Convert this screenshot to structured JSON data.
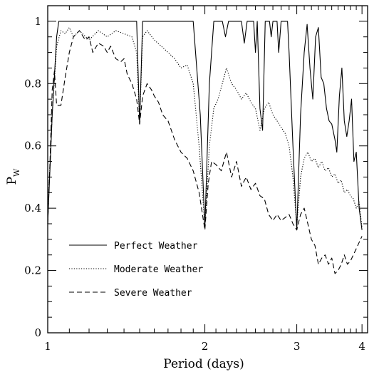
{
  "chart_data": {
    "type": "line",
    "title": "",
    "xlabel": "Period (days)",
    "ylabel_main": "P",
    "ylabel_sub": "W",
    "xscale": "log",
    "xlim": [
      1,
      4.1
    ],
    "ylim": [
      0,
      1.05
    ],
    "grid": false,
    "legend_position": "bottom-left",
    "x_ticks": [
      {
        "value": 1,
        "label": "1"
      },
      {
        "value": 2,
        "label": "2"
      },
      {
        "value": 3,
        "label": "3"
      },
      {
        "value": 4,
        "label": "4"
      }
    ],
    "y_ticks": [
      {
        "value": 0,
        "label": "0"
      },
      {
        "value": 0.2,
        "label": "0.2"
      },
      {
        "value": 0.4,
        "label": "0.4"
      },
      {
        "value": 0.6,
        "label": "0.6"
      },
      {
        "value": 0.8,
        "label": "0.8"
      },
      {
        "value": 1,
        "label": "1"
      }
    ],
    "series": [
      {
        "name": "Perfect Weather",
        "style": "solid",
        "color": "#000000",
        "points": [
          [
            1.0,
            0.35
          ],
          [
            1.02,
            0.7
          ],
          [
            1.04,
            0.95
          ],
          [
            1.05,
            1.0
          ],
          [
            1.2,
            1.0
          ],
          [
            1.4,
            1.0
          ],
          [
            1.48,
            1.0
          ],
          [
            1.5,
            0.67
          ],
          [
            1.52,
            1.0
          ],
          [
            1.7,
            1.0
          ],
          [
            1.9,
            1.0
          ],
          [
            1.96,
            0.7
          ],
          [
            2.0,
            0.34
          ],
          [
            2.04,
            0.8
          ],
          [
            2.08,
            1.0
          ],
          [
            2.16,
            1.0
          ],
          [
            2.19,
            0.95
          ],
          [
            2.22,
            1.0
          ],
          [
            2.35,
            1.0
          ],
          [
            2.38,
            0.93
          ],
          [
            2.41,
            1.0
          ],
          [
            2.48,
            1.0
          ],
          [
            2.5,
            0.9
          ],
          [
            2.52,
            1.0
          ],
          [
            2.55,
            0.72
          ],
          [
            2.58,
            0.65
          ],
          [
            2.61,
            1.0
          ],
          [
            2.66,
            1.0
          ],
          [
            2.68,
            0.95
          ],
          [
            2.7,
            1.0
          ],
          [
            2.75,
            1.0
          ],
          [
            2.77,
            0.9
          ],
          [
            2.8,
            1.0
          ],
          [
            2.88,
            1.0
          ],
          [
            2.9,
            0.9
          ],
          [
            2.95,
            0.6
          ],
          [
            3.0,
            0.33
          ],
          [
            3.05,
            0.7
          ],
          [
            3.1,
            0.9
          ],
          [
            3.14,
            0.99
          ],
          [
            3.18,
            0.85
          ],
          [
            3.22,
            0.75
          ],
          [
            3.26,
            0.95
          ],
          [
            3.3,
            0.98
          ],
          [
            3.34,
            0.82
          ],
          [
            3.38,
            0.8
          ],
          [
            3.42,
            0.72
          ],
          [
            3.46,
            0.68
          ],
          [
            3.5,
            0.67
          ],
          [
            3.55,
            0.62
          ],
          [
            3.58,
            0.58
          ],
          [
            3.62,
            0.76
          ],
          [
            3.66,
            0.85
          ],
          [
            3.7,
            0.68
          ],
          [
            3.74,
            0.63
          ],
          [
            3.78,
            0.68
          ],
          [
            3.82,
            0.75
          ],
          [
            3.86,
            0.55
          ],
          [
            3.9,
            0.58
          ],
          [
            3.95,
            0.4
          ],
          [
            4.0,
            0.33
          ]
        ]
      },
      {
        "name": "Moderate Weather",
        "style": "dotted",
        "color": "#000000",
        "points": [
          [
            1.0,
            0.38
          ],
          [
            1.02,
            0.7
          ],
          [
            1.04,
            0.92
          ],
          [
            1.06,
            0.97
          ],
          [
            1.08,
            0.96
          ],
          [
            1.1,
            0.98
          ],
          [
            1.12,
            0.95
          ],
          [
            1.15,
            0.97
          ],
          [
            1.2,
            0.94
          ],
          [
            1.25,
            0.97
          ],
          [
            1.3,
            0.95
          ],
          [
            1.35,
            0.97
          ],
          [
            1.4,
            0.96
          ],
          [
            1.45,
            0.95
          ],
          [
            1.48,
            0.9
          ],
          [
            1.5,
            0.68
          ],
          [
            1.52,
            0.95
          ],
          [
            1.55,
            0.97
          ],
          [
            1.6,
            0.94
          ],
          [
            1.65,
            0.92
          ],
          [
            1.7,
            0.9
          ],
          [
            1.75,
            0.88
          ],
          [
            1.8,
            0.85
          ],
          [
            1.85,
            0.86
          ],
          [
            1.9,
            0.8
          ],
          [
            1.95,
            0.6
          ],
          [
            2.0,
            0.34
          ],
          [
            2.04,
            0.6
          ],
          [
            2.08,
            0.72
          ],
          [
            2.12,
            0.75
          ],
          [
            2.16,
            0.8
          ],
          [
            2.2,
            0.85
          ],
          [
            2.25,
            0.8
          ],
          [
            2.3,
            0.78
          ],
          [
            2.35,
            0.75
          ],
          [
            2.4,
            0.77
          ],
          [
            2.45,
            0.74
          ],
          [
            2.5,
            0.72
          ],
          [
            2.55,
            0.65
          ],
          [
            2.6,
            0.72
          ],
          [
            2.65,
            0.74
          ],
          [
            2.7,
            0.7
          ],
          [
            2.75,
            0.68
          ],
          [
            2.8,
            0.66
          ],
          [
            2.85,
            0.64
          ],
          [
            2.9,
            0.6
          ],
          [
            2.95,
            0.5
          ],
          [
            3.0,
            0.34
          ],
          [
            3.05,
            0.5
          ],
          [
            3.1,
            0.56
          ],
          [
            3.15,
            0.58
          ],
          [
            3.2,
            0.55
          ],
          [
            3.25,
            0.56
          ],
          [
            3.3,
            0.53
          ],
          [
            3.35,
            0.55
          ],
          [
            3.4,
            0.52
          ],
          [
            3.45,
            0.53
          ],
          [
            3.5,
            0.5
          ],
          [
            3.55,
            0.51
          ],
          [
            3.6,
            0.48
          ],
          [
            3.65,
            0.49
          ],
          [
            3.7,
            0.45
          ],
          [
            3.75,
            0.46
          ],
          [
            3.8,
            0.44
          ],
          [
            3.85,
            0.43
          ],
          [
            3.9,
            0.4
          ],
          [
            3.95,
            0.42
          ],
          [
            4.0,
            0.34
          ]
        ]
      },
      {
        "name": "Severe Weather",
        "style": "dashed",
        "color": "#000000",
        "points": [
          [
            1.0,
            0.35
          ],
          [
            1.01,
            0.55
          ],
          [
            1.02,
            0.78
          ],
          [
            1.03,
            0.84
          ],
          [
            1.04,
            0.73
          ],
          [
            1.06,
            0.73
          ],
          [
            1.08,
            0.82
          ],
          [
            1.1,
            0.9
          ],
          [
            1.12,
            0.95
          ],
          [
            1.15,
            0.97
          ],
          [
            1.18,
            0.94
          ],
          [
            1.2,
            0.95
          ],
          [
            1.22,
            0.9
          ],
          [
            1.25,
            0.93
          ],
          [
            1.28,
            0.92
          ],
          [
            1.3,
            0.9
          ],
          [
            1.32,
            0.92
          ],
          [
            1.35,
            0.88
          ],
          [
            1.38,
            0.87
          ],
          [
            1.4,
            0.88
          ],
          [
            1.42,
            0.83
          ],
          [
            1.45,
            0.8
          ],
          [
            1.48,
            0.75
          ],
          [
            1.5,
            0.67
          ],
          [
            1.52,
            0.76
          ],
          [
            1.55,
            0.8
          ],
          [
            1.58,
            0.78
          ],
          [
            1.6,
            0.76
          ],
          [
            1.63,
            0.74
          ],
          [
            1.66,
            0.7
          ],
          [
            1.7,
            0.68
          ],
          [
            1.75,
            0.62
          ],
          [
            1.8,
            0.58
          ],
          [
            1.85,
            0.56
          ],
          [
            1.9,
            0.52
          ],
          [
            1.95,
            0.45
          ],
          [
            2.0,
            0.33
          ],
          [
            2.03,
            0.48
          ],
          [
            2.06,
            0.55
          ],
          [
            2.1,
            0.54
          ],
          [
            2.15,
            0.52
          ],
          [
            2.2,
            0.58
          ],
          [
            2.25,
            0.5
          ],
          [
            2.3,
            0.55
          ],
          [
            2.35,
            0.47
          ],
          [
            2.4,
            0.5
          ],
          [
            2.45,
            0.46
          ],
          [
            2.5,
            0.48
          ],
          [
            2.55,
            0.44
          ],
          [
            2.6,
            0.43
          ],
          [
            2.65,
            0.38
          ],
          [
            2.7,
            0.36
          ],
          [
            2.75,
            0.38
          ],
          [
            2.8,
            0.36
          ],
          [
            2.85,
            0.37
          ],
          [
            2.9,
            0.38
          ],
          [
            2.95,
            0.35
          ],
          [
            3.0,
            0.33
          ],
          [
            3.05,
            0.38
          ],
          [
            3.1,
            0.4
          ],
          [
            3.15,
            0.35
          ],
          [
            3.2,
            0.3
          ],
          [
            3.25,
            0.28
          ],
          [
            3.3,
            0.22
          ],
          [
            3.35,
            0.24
          ],
          [
            3.4,
            0.25
          ],
          [
            3.45,
            0.22
          ],
          [
            3.5,
            0.24
          ],
          [
            3.55,
            0.19
          ],
          [
            3.6,
            0.2
          ],
          [
            3.65,
            0.22
          ],
          [
            3.7,
            0.25
          ],
          [
            3.75,
            0.22
          ],
          [
            3.8,
            0.23
          ],
          [
            3.85,
            0.25
          ],
          [
            3.9,
            0.27
          ],
          [
            3.95,
            0.29
          ],
          [
            4.0,
            0.31
          ]
        ]
      }
    ]
  }
}
